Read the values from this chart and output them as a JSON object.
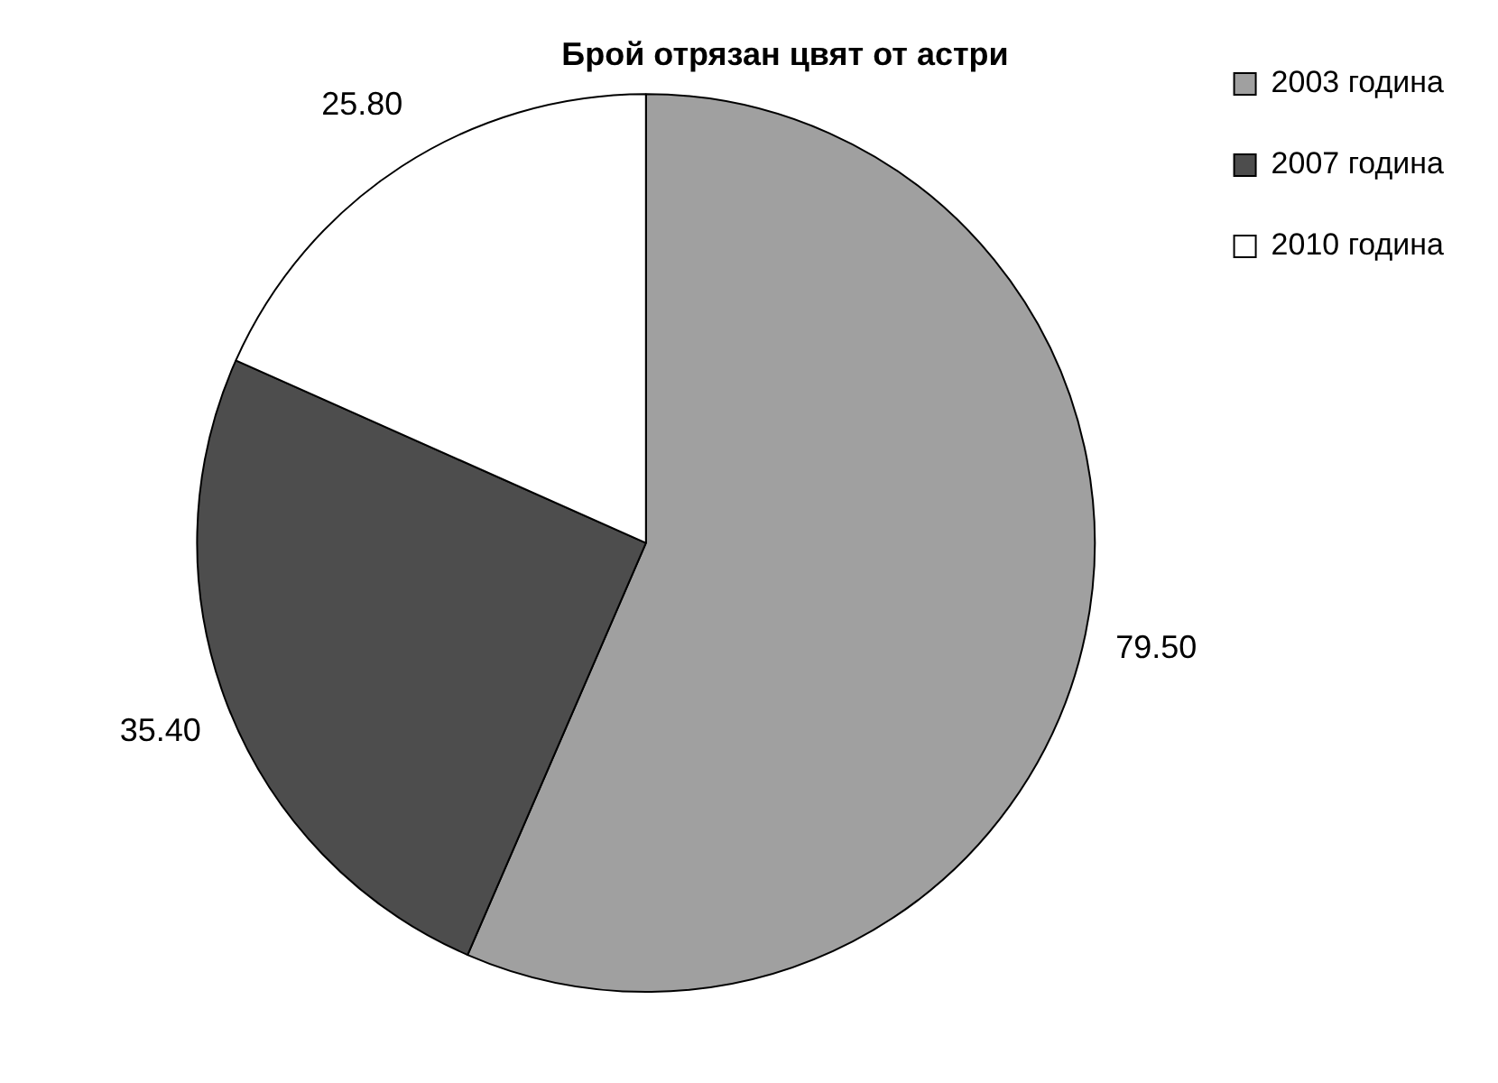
{
  "chart_data": {
    "type": "pie",
    "title": "Брой отрязан цвят от астри",
    "categories": [
      "2003 година",
      "2007 година",
      "2010 година"
    ],
    "values": [
      79.5,
      35.4,
      25.8
    ],
    "value_labels": [
      "79.50",
      "35.40",
      "25.80"
    ],
    "colors": [
      "#a0a0a0",
      "#4d4d4d",
      "#ffffff"
    ],
    "legend": "top right"
  }
}
